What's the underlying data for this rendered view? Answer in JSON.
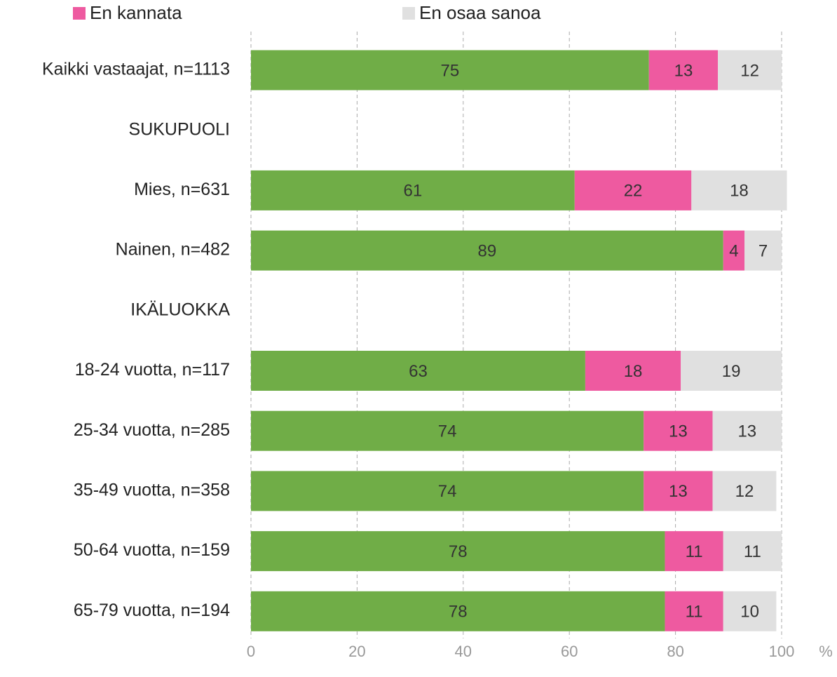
{
  "chart_data": {
    "type": "stacked_bar_horizontal",
    "categories": [
      "Kaikki vastaajat, n=1113",
      "SUKUPUOLI",
      "Mies, n=631",
      "Nainen, n=482",
      "IKÄLUOKKA",
      "18-24 vuotta, n=117",
      "25-34 vuotta, n=285",
      "35-49 vuotta, n=358",
      "50-64 vuotta, n=159",
      "65-79 vuotta, n=194"
    ],
    "series": [
      {
        "color": "#70ad47",
        "values": [
          75,
          null,
          61,
          89,
          null,
          63,
          74,
          74,
          78,
          78
        ]
      },
      {
        "name": "En kannata",
        "color": "#ee5aa0",
        "values": [
          13,
          null,
          22,
          4,
          null,
          18,
          13,
          13,
          11,
          11
        ]
      },
      {
        "name": "En osaa sanoa",
        "color": "#e0e0e0",
        "values": [
          12,
          null,
          18,
          7,
          null,
          19,
          13,
          12,
          11,
          10
        ]
      }
    ],
    "xlim": [
      0,
      100
    ],
    "xticks": [
      0,
      20,
      40,
      60,
      80,
      100
    ],
    "xlabel": "%",
    "grid": true
  }
}
